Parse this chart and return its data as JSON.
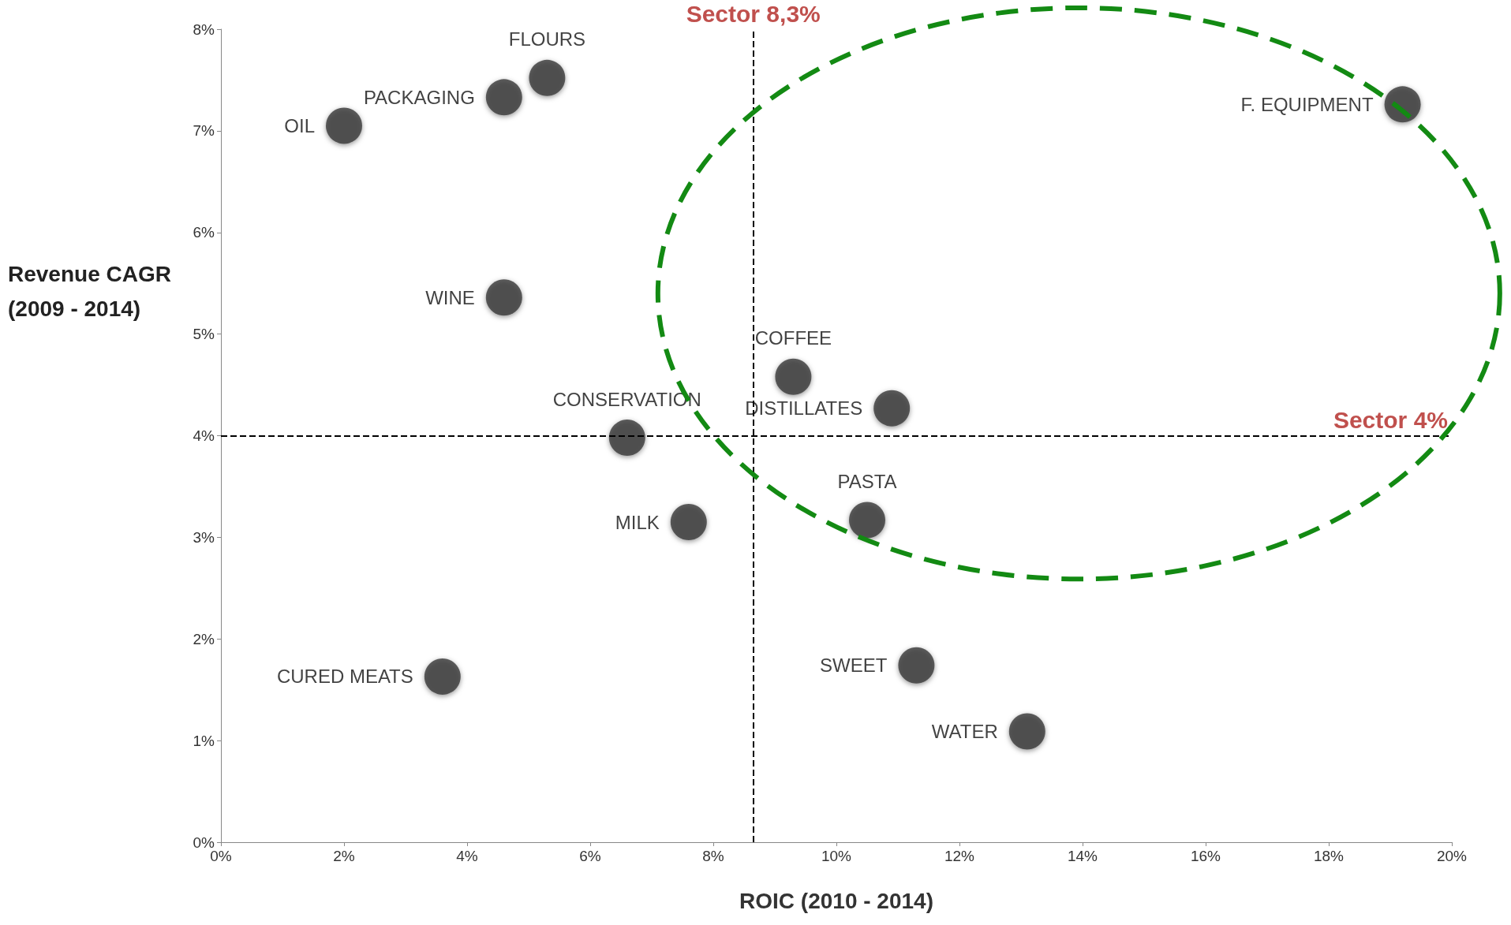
{
  "chart_data": {
    "type": "scatter",
    "xlabel": "ROIC (2010 - 2014)",
    "ylabel": "Revenue CAGR (2009 - 2014)",
    "xlim": [
      0,
      20
    ],
    "ylim": [
      0,
      8
    ],
    "xticks": [
      {
        "value": 0,
        "label": "0%"
      },
      {
        "value": 2,
        "label": "2%"
      },
      {
        "value": 4,
        "label": "4%"
      },
      {
        "value": 6,
        "label": "6%"
      },
      {
        "value": 8,
        "label": "8%"
      },
      {
        "value": 10,
        "label": "10%"
      },
      {
        "value": 12,
        "label": "12%"
      },
      {
        "value": 14,
        "label": "14%"
      },
      {
        "value": 16,
        "label": "16%"
      },
      {
        "value": 18,
        "label": "18%"
      },
      {
        "value": 20,
        "label": "20%"
      }
    ],
    "yticks": [
      {
        "value": 0,
        "label": "0%"
      },
      {
        "value": 1,
        "label": "1%"
      },
      {
        "value": 2,
        "label": "2%"
      },
      {
        "value": 3,
        "label": "3%"
      },
      {
        "value": 4,
        "label": "4%"
      },
      {
        "value": 5,
        "label": "5%"
      },
      {
        "value": 6,
        "label": "6%"
      },
      {
        "value": 7,
        "label": "7%"
      },
      {
        "value": 8,
        "label": "8%"
      }
    ],
    "grid": false,
    "marker": "circle",
    "series": [
      {
        "color": "#3a3a3a",
        "x": [
          2.0,
          4.6,
          5.3,
          4.6,
          6.6,
          7.6,
          3.6,
          9.3,
          10.9,
          10.5,
          11.3,
          13.1,
          19.2
        ],
        "values": [
          7.05,
          7.33,
          7.52,
          5.36,
          3.98,
          3.15,
          1.63,
          4.58,
          4.27,
          3.17,
          1.74,
          1.09,
          7.26
        ],
        "value_labels": [
          "OIL",
          "PACKAGING",
          "FLOURS",
          "WINE",
          "CONSERVATION",
          "MILK",
          "CURED MEATS",
          "COFFEE",
          "DISTILLATES",
          "PASTA",
          "SWEET",
          "WATER",
          "F. EQUIPMENT"
        ]
      }
    ],
    "ref_lines": [
      {
        "axis": "x",
        "value": 8.65,
        "label": "Sector 8,3%",
        "line_style": "dashed"
      },
      {
        "axis": "y",
        "value": 4,
        "label": "Sector 4%",
        "line_style": "dashed"
      }
    ]
  }
}
